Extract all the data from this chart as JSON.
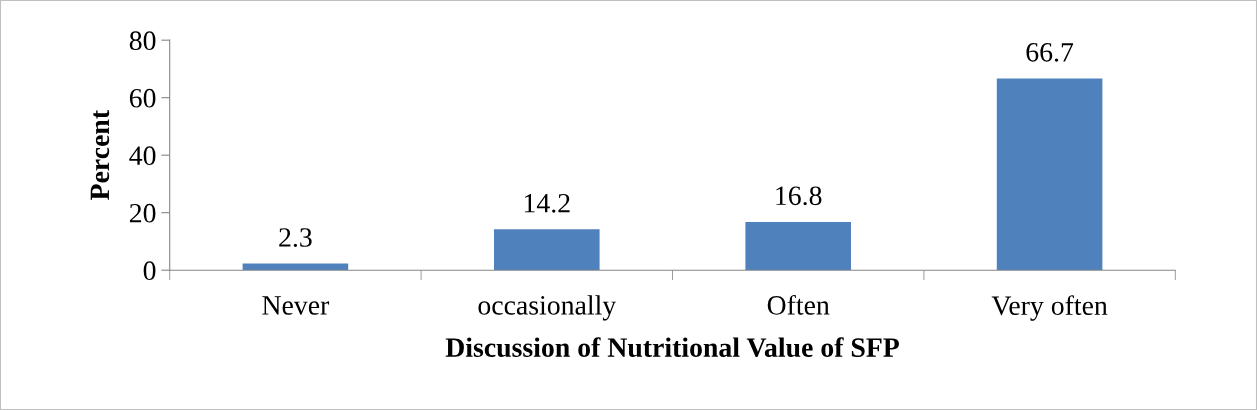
{
  "chart_data": {
    "type": "bar",
    "xlabel": "Discussion of Nutritional Value of SFP",
    "ylabel": "Percent",
    "categories": [
      "Never",
      "occasionally",
      "Often",
      "Very often"
    ],
    "values": [
      2.3,
      14.2,
      16.8,
      66.7
    ],
    "color": "#4f81bd",
    "ylim": [
      0,
      80
    ],
    "yticks": [
      0,
      20,
      40,
      60,
      80
    ],
    "data_labels": true,
    "grid": false,
    "legend": false
  }
}
